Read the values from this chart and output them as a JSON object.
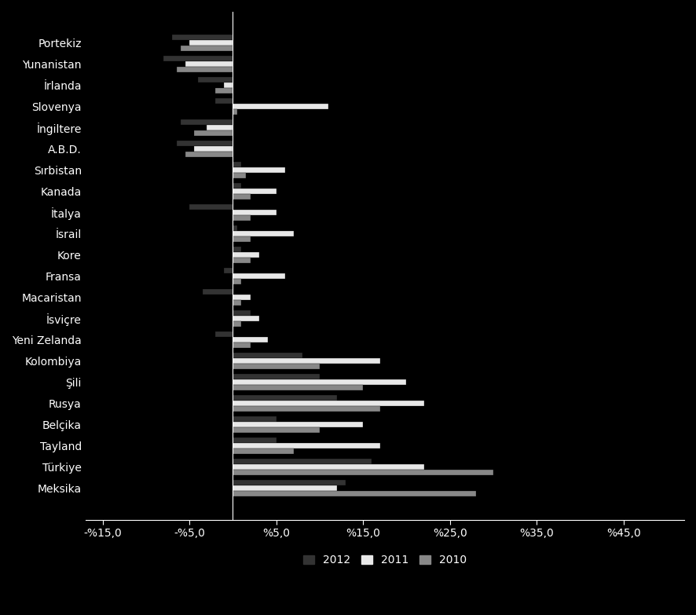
{
  "categories": [
    "Portekiz",
    "Yunanistan",
    "İrlanda",
    "Slovenya",
    "İngiltere",
    "A.B.D.",
    "Sırbistan",
    "Kanada",
    "İtalya",
    "İsrail",
    "Kore",
    "Fransa",
    "Macaristan",
    "İsviçre",
    "Yeni Zelanda",
    "Kolombiya",
    "Şili",
    "Rusya",
    "Belçika",
    "Tayland",
    "Türkiye",
    "Meksika"
  ],
  "series": {
    "2012": [
      -7.0,
      -8.0,
      -4.0,
      -2.0,
      -6.0,
      -6.5,
      1.0,
      1.0,
      -5.0,
      0.5,
      1.0,
      -1.0,
      -3.5,
      2.0,
      -2.0,
      8.0,
      10.0,
      12.0,
      5.0,
      5.0,
      16.0,
      13.0
    ],
    "2011": [
      -5.0,
      -5.5,
      -1.0,
      11.0,
      -3.0,
      -4.5,
      6.0,
      5.0,
      5.0,
      7.0,
      3.0,
      6.0,
      2.0,
      3.0,
      4.0,
      17.0,
      20.0,
      22.0,
      15.0,
      17.0,
      22.0,
      12.0
    ],
    "2010": [
      -6.0,
      -6.5,
      -2.0,
      0.5,
      -4.5,
      -5.5,
      1.5,
      2.0,
      2.0,
      2.0,
      2.0,
      1.0,
      1.0,
      1.0,
      2.0,
      10.0,
      15.0,
      17.0,
      10.0,
      7.0,
      30.0,
      28.0
    ]
  },
  "colors": {
    "2012": "#333333",
    "2011": "#e8e8e8",
    "2010": "#888888"
  },
  "xlim": [
    -17,
    52
  ],
  "xticks": [
    -15,
    -5,
    5,
    15,
    25,
    35,
    45
  ],
  "xticklabels": [
    "-%15,0",
    "-%5,0",
    "%5,0",
    "%15,0",
    "%25,0",
    "%35,0",
    "%45,0"
  ],
  "background_color": "#000000",
  "text_color": "#ffffff",
  "bar_height": 0.26,
  "figsize": [
    8.86,
    7.83
  ]
}
